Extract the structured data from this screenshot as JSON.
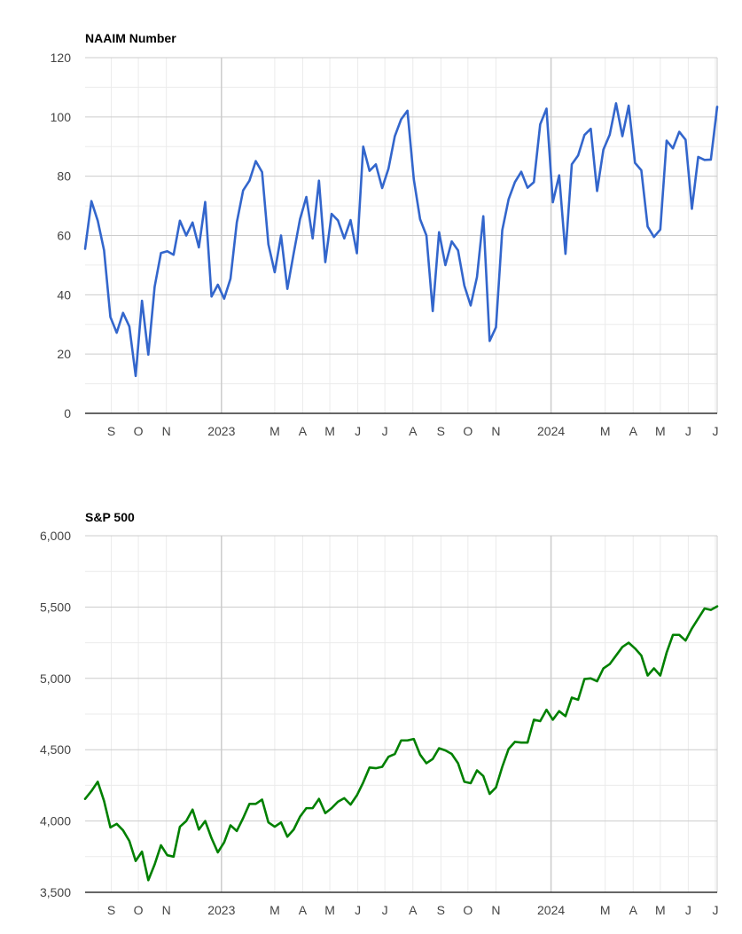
{
  "x_labels": [
    "S",
    "O",
    "N",
    "2023",
    "M",
    "A",
    "M",
    "J",
    "J",
    "A",
    "S",
    "O",
    "N",
    "2024",
    "M",
    "A",
    "M",
    "J",
    "J"
  ],
  "colors": {
    "naaim": "#3366cc",
    "sp500": "#008000",
    "gridMajor": "#cccccc",
    "gridMinor": "#ebebeb",
    "axis": "#333333"
  },
  "chart_data": [
    {
      "type": "line",
      "title": "NAAIM Number",
      "xlabel": "",
      "ylabel": "",
      "ylim": [
        0,
        120
      ],
      "y_ticks": [
        "0",
        "20",
        "40",
        "60",
        "80",
        "100",
        "120"
      ],
      "x_tick_labels": [
        "S",
        "O",
        "N",
        "2023",
        "M",
        "A",
        "M",
        "J",
        "J",
        "A",
        "S",
        "O",
        "N",
        "2024",
        "M",
        "A",
        "M",
        "J",
        "J"
      ],
      "x_range": [
        "2022-08-03",
        "2024-07-03"
      ],
      "grid": true,
      "series": [
        {
          "dates": [
            "2022-08-03",
            "2022-08-10",
            "2022-08-17",
            "2022-08-24",
            "2022-08-31",
            "2022-09-07",
            "2022-09-14",
            "2022-09-21",
            "2022-09-28",
            "2022-10-05",
            "2022-10-12",
            "2022-10-19",
            "2022-10-26",
            "2022-11-02",
            "2022-11-09",
            "2022-11-16",
            "2022-11-23",
            "2022-11-30",
            "2022-12-07",
            "2022-12-14",
            "2022-12-21",
            "2022-12-28",
            "2023-01-04",
            "2023-01-11",
            "2023-01-18",
            "2023-01-25",
            "2023-02-01",
            "2023-02-08",
            "2023-02-15",
            "2023-02-22",
            "2023-03-01",
            "2023-03-08",
            "2023-03-15",
            "2023-03-22",
            "2023-03-29",
            "2023-04-05",
            "2023-04-12",
            "2023-04-19",
            "2023-04-26",
            "2023-05-03",
            "2023-05-10",
            "2023-05-17",
            "2023-05-24",
            "2023-05-31",
            "2023-06-07",
            "2023-06-14",
            "2023-06-21",
            "2023-06-28",
            "2023-07-05",
            "2023-07-12",
            "2023-07-19",
            "2023-07-26",
            "2023-08-02",
            "2023-08-09",
            "2023-08-16",
            "2023-08-23",
            "2023-08-30",
            "2023-09-06",
            "2023-09-13",
            "2023-09-20",
            "2023-09-27",
            "2023-10-04",
            "2023-10-11",
            "2023-10-18",
            "2023-10-25",
            "2023-11-01",
            "2023-11-08",
            "2023-11-15",
            "2023-11-22",
            "2023-11-29",
            "2023-12-06",
            "2023-12-13",
            "2023-12-20",
            "2023-12-27",
            "2024-01-03",
            "2024-01-10",
            "2024-01-17",
            "2024-01-24",
            "2024-01-31",
            "2024-02-07",
            "2024-02-14",
            "2024-02-21",
            "2024-02-28",
            "2024-03-06",
            "2024-03-13",
            "2024-03-20",
            "2024-03-27",
            "2024-04-03",
            "2024-04-10",
            "2024-04-17",
            "2024-04-24",
            "2024-05-01",
            "2024-05-08",
            "2024-05-15",
            "2024-05-22",
            "2024-05-29",
            "2024-06-05",
            "2024-06-12",
            "2024-06-19",
            "2024-06-26",
            "2024-07-03"
          ],
          "values": [
            55.5,
            71.6,
            65,
            55,
            32.5,
            27.2,
            33.9,
            29.3,
            12.6,
            38,
            19.8,
            42.7,
            54.1,
            54.7,
            53.5,
            65,
            60,
            64.4,
            56,
            71.3,
            39.4,
            43.4,
            38.7,
            45.4,
            64.4,
            75.2,
            78.5,
            85.1,
            81.4,
            57,
            47.6,
            60,
            42,
            54,
            65.5,
            73,
            59,
            78.5,
            51,
            67.3,
            65.1,
            59,
            65.2,
            54,
            90,
            81.8,
            84,
            76,
            82.6,
            93.5,
            99.2,
            102.1,
            79,
            65.5,
            60,
            34.5,
            61.1,
            50,
            58,
            55,
            43.1,
            36.4,
            46,
            66.5,
            24.4,
            29,
            61.8,
            72.2,
            78,
            81.5,
            76.1,
            78,
            97.5,
            102.8,
            71.2,
            80.3,
            53.8,
            84,
            87,
            93.9,
            96,
            75,
            89,
            94,
            104.6,
            93.5,
            103.8,
            84.5,
            82,
            63,
            59.5,
            62,
            92,
            89.4,
            95,
            92.3,
            69,
            86.5,
            85.5,
            85.6,
            103.4
          ]
        }
      ]
    },
    {
      "type": "line",
      "title": "S&P 500",
      "xlabel": "",
      "ylabel": "",
      "ylim": [
        3500,
        6000
      ],
      "y_ticks": [
        "3,500",
        "4,000",
        "4,500",
        "5,000",
        "5,500",
        "6,000"
      ],
      "x_tick_labels": [
        "S",
        "O",
        "N",
        "2023",
        "M",
        "A",
        "M",
        "J",
        "J",
        "A",
        "S",
        "O",
        "N",
        "2024",
        "M",
        "A",
        "M",
        "J",
        "J"
      ],
      "x_range": [
        "2022-08-03",
        "2024-07-03"
      ],
      "grid": true,
      "series": [
        {
          "dates": [
            "2022-08-03",
            "2022-08-10",
            "2022-08-17",
            "2022-08-24",
            "2022-08-31",
            "2022-09-07",
            "2022-09-14",
            "2022-09-21",
            "2022-09-28",
            "2022-10-05",
            "2022-10-12",
            "2022-10-19",
            "2022-10-26",
            "2022-11-02",
            "2022-11-09",
            "2022-11-16",
            "2022-11-23",
            "2022-11-30",
            "2022-12-07",
            "2022-12-14",
            "2022-12-21",
            "2022-12-28",
            "2023-01-04",
            "2023-01-11",
            "2023-01-18",
            "2023-01-25",
            "2023-02-01",
            "2023-02-08",
            "2023-02-15",
            "2023-02-22",
            "2023-03-01",
            "2023-03-08",
            "2023-03-15",
            "2023-03-22",
            "2023-03-29",
            "2023-04-05",
            "2023-04-12",
            "2023-04-19",
            "2023-04-26",
            "2023-05-03",
            "2023-05-10",
            "2023-05-17",
            "2023-05-24",
            "2023-05-31",
            "2023-06-07",
            "2023-06-14",
            "2023-06-21",
            "2023-06-28",
            "2023-07-05",
            "2023-07-12",
            "2023-07-19",
            "2023-07-26",
            "2023-08-02",
            "2023-08-09",
            "2023-08-16",
            "2023-08-23",
            "2023-08-30",
            "2023-09-06",
            "2023-09-13",
            "2023-09-20",
            "2023-09-27",
            "2023-10-04",
            "2023-10-11",
            "2023-10-18",
            "2023-10-25",
            "2023-11-01",
            "2023-11-08",
            "2023-11-15",
            "2023-11-22",
            "2023-11-29",
            "2023-12-06",
            "2023-12-13",
            "2023-12-20",
            "2023-12-27",
            "2024-01-03",
            "2024-01-10",
            "2024-01-17",
            "2024-01-24",
            "2024-01-31",
            "2024-02-07",
            "2024-02-14",
            "2024-02-21",
            "2024-02-28",
            "2024-03-06",
            "2024-03-13",
            "2024-03-20",
            "2024-03-27",
            "2024-04-03",
            "2024-04-10",
            "2024-04-17",
            "2024-04-24",
            "2024-05-01",
            "2024-05-08",
            "2024-05-15",
            "2024-05-22",
            "2024-05-29",
            "2024-06-05",
            "2024-06-12",
            "2024-06-19",
            "2024-06-26",
            "2024-07-03"
          ],
          "values": [
            4155,
            4210,
            4275,
            4140,
            3955,
            3980,
            3935,
            3860,
            3720,
            3785,
            3585,
            3695,
            3830,
            3760,
            3750,
            3960,
            4000,
            4080,
            3940,
            4000,
            3880,
            3780,
            3850,
            3970,
            3930,
            4020,
            4120,
            4120,
            4150,
            3990,
            3960,
            3990,
            3890,
            3940,
            4030,
            4090,
            4090,
            4155,
            4055,
            4090,
            4135,
            4160,
            4115,
            4180,
            4270,
            4375,
            4370,
            4380,
            4450,
            4470,
            4565,
            4565,
            4575,
            4465,
            4405,
            4435,
            4510,
            4495,
            4470,
            4405,
            4275,
            4265,
            4355,
            4315,
            4190,
            4235,
            4380,
            4505,
            4555,
            4550,
            4550,
            4710,
            4700,
            4780,
            4710,
            4770,
            4735,
            4865,
            4850,
            4995,
            5000,
            4980,
            5070,
            5100,
            5160,
            5220,
            5250,
            5210,
            5160,
            5020,
            5070,
            5020,
            5180,
            5305,
            5305,
            5265,
            5350,
            5420,
            5490,
            5480,
            5505
          ]
        }
      ]
    }
  ]
}
